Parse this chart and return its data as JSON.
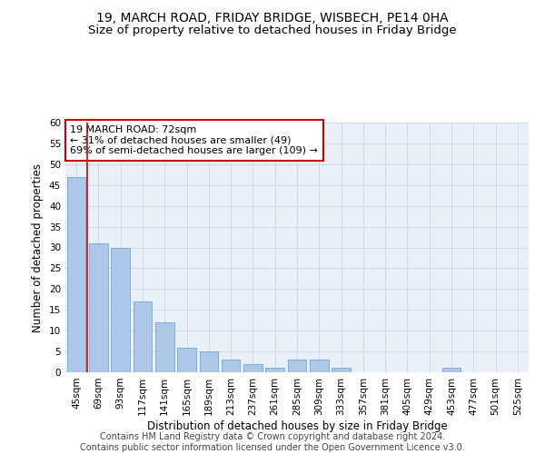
{
  "title1": "19, MARCH ROAD, FRIDAY BRIDGE, WISBECH, PE14 0HA",
  "title2": "Size of property relative to detached houses in Friday Bridge",
  "xlabel": "Distribution of detached houses by size in Friday Bridge",
  "ylabel": "Number of detached properties",
  "bin_labels": [
    "45sqm",
    "69sqm",
    "93sqm",
    "117sqm",
    "141sqm",
    "165sqm",
    "189sqm",
    "213sqm",
    "237sqm",
    "261sqm",
    "285sqm",
    "309sqm",
    "333sqm",
    "357sqm",
    "381sqm",
    "405sqm",
    "429sqm",
    "453sqm",
    "477sqm",
    "501sqm",
    "525sqm"
  ],
  "bar_values": [
    47,
    31,
    30,
    17,
    12,
    6,
    5,
    3,
    2,
    1,
    3,
    3,
    1,
    0,
    0,
    0,
    0,
    1,
    0,
    0,
    0
  ],
  "bar_color": "#aec6e8",
  "bar_edge_color": "#5a9fd4",
  "vline_x": 0.5,
  "vline_color": "#cc0000",
  "annotation_text": "19 MARCH ROAD: 72sqm\n← 31% of detached houses are smaller (49)\n69% of semi-detached houses are larger (109) →",
  "annotation_box_color": "#ffffff",
  "annotation_box_edge_color": "#cc0000",
  "ylim": [
    0,
    60
  ],
  "yticks": [
    0,
    5,
    10,
    15,
    20,
    25,
    30,
    35,
    40,
    45,
    50,
    55,
    60
  ],
  "grid_color": "#d0d8e8",
  "background_color": "#eaf0f8",
  "footer_text": "Contains HM Land Registry data © Crown copyright and database right 2024.\nContains public sector information licensed under the Open Government Licence v3.0.",
  "title1_fontsize": 10,
  "title2_fontsize": 9.5,
  "xlabel_fontsize": 8.5,
  "ylabel_fontsize": 8.5,
  "tick_fontsize": 7.5,
  "annotation_fontsize": 8,
  "footer_fontsize": 7
}
